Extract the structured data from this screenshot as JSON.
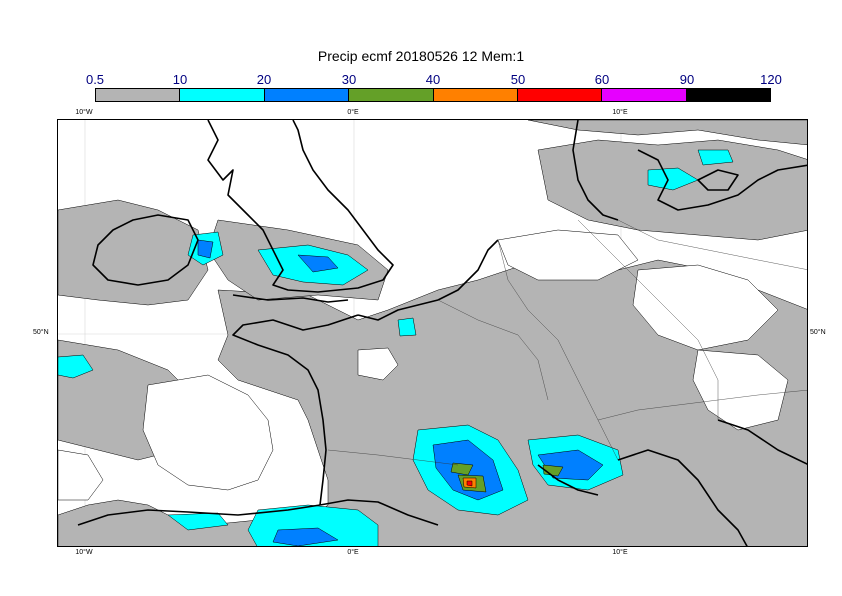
{
  "title": "Precip ecmf 20180526 12 Mem:1",
  "colorbar": {
    "labels": [
      "0.5",
      "10",
      "20",
      "30",
      "40",
      "50",
      "60",
      "90",
      "120"
    ],
    "colors": [
      "#b4b4b4",
      "#00ffff",
      "#0080ff",
      "#64a028",
      "#ff8000",
      "#ff0000",
      "#e600ff",
      "#000000"
    ]
  },
  "axes": {
    "lon_top": [
      "10°W",
      "0°E",
      "10°E"
    ],
    "lon_bottom": [
      "10°W",
      "0°E",
      "10°E"
    ],
    "lat_left": [
      "50°N"
    ],
    "lat_right": [
      "50°N"
    ]
  }
}
